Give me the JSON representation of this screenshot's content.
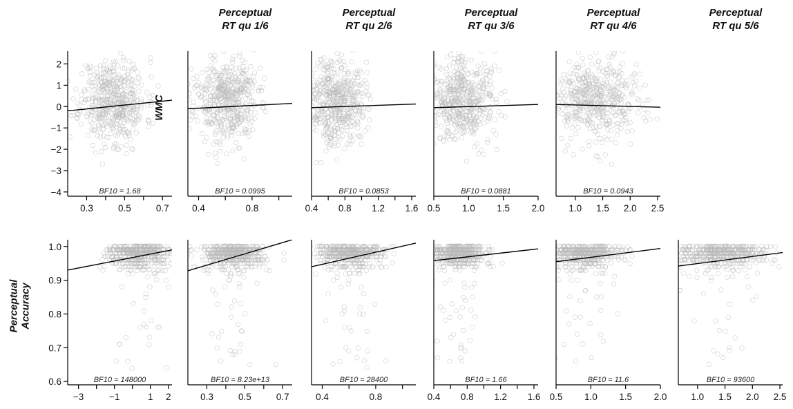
{
  "colors": {
    "points": "#b9b9b9",
    "line": "#000000",
    "axis": "#000000",
    "text": "#111111"
  },
  "chart_data": {
    "type": "scatter",
    "title": "",
    "columns": [
      {
        "line1": "Perceptual",
        "line2": "RT qu 1/6"
      },
      {
        "line1": "Perceptual",
        "line2": "RT qu 2/6"
      },
      {
        "line1": "Perceptual",
        "line2": "RT qu 3/6"
      },
      {
        "line1": "Perceptual",
        "line2": "RT qu 4/6"
      },
      {
        "line1": "Perceptual",
        "line2": "RT qu 5/6"
      }
    ],
    "rows": [
      {
        "lines": [
          "WMC"
        ],
        "ylim": [
          -4.2,
          2.6
        ],
        "yticks": [
          -4,
          -3,
          -2,
          -1,
          0,
          1,
          2
        ],
        "yticklabels": [
          "−4",
          "−3",
          "−2",
          "−1",
          "0",
          "1",
          "2"
        ]
      },
      {
        "lines": [
          "Perceptual",
          "Accuracy"
        ],
        "ylim": [
          0.59,
          1.02
        ],
        "yticks": [
          0.6,
          0.7,
          0.8,
          0.9,
          1.0
        ],
        "yticklabels": [
          "0.6",
          "0.7",
          "0.8",
          "0.9",
          "1.0"
        ]
      }
    ],
    "panels": [
      {
        "name": "wmc-rt1",
        "row": 0,
        "col": 0,
        "bf10": "BF10 = 1.68",
        "xlim": [
          0.2,
          0.75
        ],
        "xticks": [
          0.3,
          0.4,
          0.5,
          0.6,
          0.7
        ],
        "xticklabels": [
          "0.3",
          "",
          "0.5",
          "",
          "0.7"
        ],
        "line": [
          [
            0.2,
            -0.2
          ],
          [
            0.75,
            0.3
          ]
        ],
        "cloud": {
          "cx": 0.44,
          "sx": 0.085,
          "cy": 0.3,
          "sy": 1.0,
          "n": 520,
          "seed": 11
        }
      },
      {
        "name": "wmc-rt2",
        "row": 0,
        "col": 1,
        "bf10": "BF10 = 0.0995",
        "xlim": [
          0.32,
          1.1
        ],
        "xticks": [
          0.4,
          0.6,
          0.8,
          1.0
        ],
        "xticklabels": [
          "0.4",
          "",
          "0.8",
          ""
        ],
        "line": [
          [
            0.32,
            -0.1
          ],
          [
            1.1,
            0.15
          ]
        ],
        "cloud": {
          "cx": 0.6,
          "sx": 0.12,
          "cy": 0.3,
          "sy": 1.0,
          "n": 520,
          "seed": 23
        }
      },
      {
        "name": "wmc-rt3",
        "row": 0,
        "col": 2,
        "bf10": "BF10 = 0.0853",
        "xlim": [
          0.4,
          1.65
        ],
        "xticks": [
          0.4,
          0.6,
          0.8,
          1.0,
          1.2,
          1.4,
          1.6
        ],
        "xticklabels": [
          "0.4",
          "",
          "0.8",
          "",
          "1.2",
          "",
          "1.6"
        ],
        "line": [
          [
            0.4,
            -0.05
          ],
          [
            1.65,
            0.12
          ]
        ],
        "cloud": {
          "cx": 0.7,
          "sx": 0.17,
          "cy": 0.3,
          "sy": 1.0,
          "n": 520,
          "seed": 37
        }
      },
      {
        "name": "wmc-rt4",
        "row": 0,
        "col": 3,
        "bf10": "BF10 = 0.0881",
        "xlim": [
          0.5,
          2.0
        ],
        "xticks": [
          0.5,
          1.0,
          1.5,
          2.0
        ],
        "xticklabels": [
          "0.5",
          "1.0",
          "1.5",
          "2.0"
        ],
        "line": [
          [
            0.5,
            -0.05
          ],
          [
            2.0,
            0.1
          ]
        ],
        "cloud": {
          "cx": 0.9,
          "sx": 0.25,
          "cy": 0.3,
          "sy": 1.0,
          "n": 520,
          "seed": 41
        }
      },
      {
        "name": "wmc-rt5",
        "row": 0,
        "col": 4,
        "bf10": "BF10 = 0.0943",
        "xlim": [
          0.65,
          2.55
        ],
        "xticks": [
          1.0,
          1.5,
          2.0,
          2.5
        ],
        "xticklabels": [
          "1.0",
          "1.5",
          "2.0",
          "2.5"
        ],
        "line": [
          [
            0.65,
            0.1
          ],
          [
            2.55,
            -0.03
          ]
        ],
        "cloud": {
          "cx": 1.4,
          "sx": 0.45,
          "cy": 0.3,
          "sy": 1.0,
          "n": 520,
          "seed": 53
        }
      },
      {
        "name": "acc-wmc",
        "row": 1,
        "col": 0,
        "bf10": "BF10 = 148000",
        "xlim": [
          -3.6,
          2.2
        ],
        "xticks": [
          -3,
          -2,
          -1,
          0,
          1,
          2
        ],
        "xticklabels": [
          "−3",
          "",
          "−1",
          "",
          "1",
          "2"
        ],
        "line": [
          [
            -3.6,
            0.93
          ],
          [
            2.2,
            0.99
          ]
        ],
        "cloud": {
          "cx": 0.3,
          "sx": 0.9,
          "cy": 0.985,
          "sy": 0.03,
          "n": 520,
          "seed": 61
        }
      },
      {
        "name": "acc-rt1",
        "row": 1,
        "col": 1,
        "bf10": "BF10 = 8.23e+13",
        "xlim": [
          0.2,
          0.75
        ],
        "xticks": [
          0.3,
          0.4,
          0.5,
          0.6,
          0.7
        ],
        "xticklabels": [
          "0.3",
          "",
          "0.5",
          "",
          "0.7"
        ],
        "line": [
          [
            0.2,
            0.928
          ],
          [
            0.75,
            1.02
          ]
        ],
        "cloud": {
          "cx": 0.44,
          "sx": 0.085,
          "cy": 0.985,
          "sy": 0.03,
          "n": 520,
          "seed": 71
        }
      },
      {
        "name": "acc-rt2",
        "row": 1,
        "col": 2,
        "bf10": "BF10 = 28400",
        "xlim": [
          0.32,
          1.1
        ],
        "xticks": [
          0.4,
          0.6,
          0.8,
          1.0
        ],
        "xticklabels": [
          "0.4",
          "",
          "0.8",
          ""
        ],
        "line": [
          [
            0.32,
            0.94
          ],
          [
            1.1,
            1.01
          ]
        ],
        "cloud": {
          "cx": 0.6,
          "sx": 0.12,
          "cy": 0.985,
          "sy": 0.03,
          "n": 520,
          "seed": 83
        }
      },
      {
        "name": "acc-rt3",
        "row": 1,
        "col": 3,
        "bf10": "BF10 = 1.66",
        "xlim": [
          0.4,
          1.65
        ],
        "xticks": [
          0.4,
          0.6,
          0.8,
          1.0,
          1.2,
          1.4,
          1.6
        ],
        "xticklabels": [
          "0.4",
          "",
          "0.8",
          "",
          "1.2",
          "",
          "1.6"
        ],
        "line": [
          [
            0.4,
            0.958
          ],
          [
            1.65,
            0.993
          ]
        ],
        "cloud": {
          "cx": 0.7,
          "sx": 0.17,
          "cy": 0.985,
          "sy": 0.03,
          "n": 520,
          "seed": 97
        }
      },
      {
        "name": "acc-rt4",
        "row": 1,
        "col": 4,
        "bf10": "BF10 = 11.6",
        "xlim": [
          0.5,
          2.0
        ],
        "xticks": [
          0.5,
          1.0,
          1.5,
          2.0
        ],
        "xticklabels": [
          "0.5",
          "1.0",
          "1.5",
          "2.0"
        ],
        "line": [
          [
            0.5,
            0.955
          ],
          [
            2.0,
            0.994
          ]
        ],
        "cloud": {
          "cx": 0.9,
          "sx": 0.25,
          "cy": 0.985,
          "sy": 0.03,
          "n": 520,
          "seed": 103
        }
      },
      {
        "name": "acc-rt5",
        "row": 1,
        "col": 5,
        "bf10": "BF10 = 93600",
        "xlim": [
          0.65,
          2.55
        ],
        "xticks": [
          1.0,
          1.5,
          2.0,
          2.5
        ],
        "xticklabels": [
          "1.0",
          "1.5",
          "2.0",
          "2.5"
        ],
        "line": [
          [
            0.65,
            0.942
          ],
          [
            2.55,
            0.982
          ]
        ],
        "cloud": {
          "cx": 1.4,
          "sx": 0.45,
          "cy": 0.985,
          "sy": 0.03,
          "n": 520,
          "seed": 113
        }
      }
    ]
  }
}
